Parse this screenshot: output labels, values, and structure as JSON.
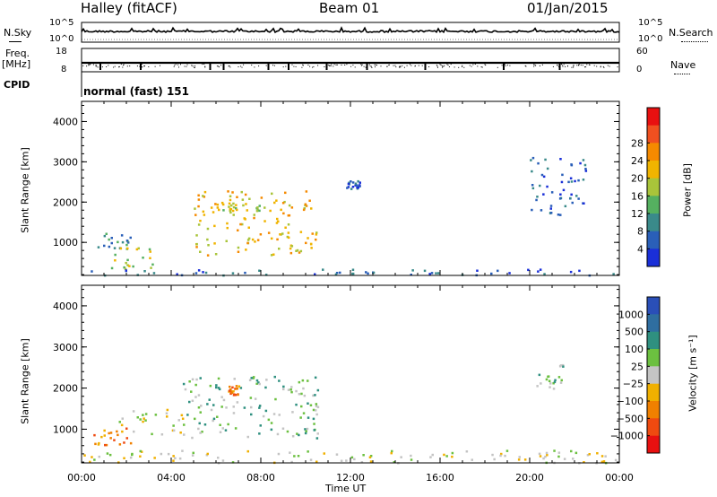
{
  "header": {
    "radar": "Halley (fitACF)",
    "beam": "Beam 01",
    "date": "01/Jan/2015"
  },
  "status": {
    "nsky_label": "N.Sky",
    "nsky_ticks": [
      "10^5",
      "10^0"
    ],
    "nsearch_label": "N.Search",
    "nsearch_ticks": [
      "10^5",
      "10^0"
    ],
    "freq_label": "Freq.",
    "freq_unit": "[MHz]",
    "freq_ticks": [
      "18",
      "8"
    ],
    "nave_label": "Nave",
    "nave_ticks": [
      "60",
      "0"
    ],
    "cpid_label": "CPID",
    "cpid_value": "normal (fast) 151"
  },
  "colors": {
    "power": [
      "#1a2fd8",
      "#2a5fb8",
      "#3a8a8a",
      "#55b060",
      "#a9c43a",
      "#f0b400",
      "#f58a00",
      "#f05020",
      "#e81010"
    ],
    "velocity": [
      "#2a4fb8",
      "#2f6ea0",
      "#2f9080",
      "#6cc040",
      "#c4c4c4",
      "#f0b000",
      "#f08000",
      "#ef4a10",
      "#e81010"
    ]
  },
  "chart_data": [
    {
      "type": "heatmap",
      "panel": "power",
      "ylabel": "Slant Range [km]",
      "xlabel": "Time UT",
      "x_ticks": [
        "00:00",
        "04:00",
        "08:00",
        "12:00",
        "16:00",
        "20:00",
        "00:00"
      ],
      "y_ticks": [
        "1000",
        "2000",
        "3000",
        "4000"
      ],
      "xlim_hours": [
        0,
        24
      ],
      "ylim_km": [
        180,
        4500
      ],
      "colorbar_label": "Power [dB]",
      "colorbar_ticks": [
        "4",
        "8",
        "12",
        "16",
        "20",
        "24",
        "28"
      ],
      "features": [
        {
          "t0": 0.6,
          "t1": 2.2,
          "r0": 850,
          "r1": 1250,
          "level": 2
        },
        {
          "t0": 1.2,
          "t1": 3.2,
          "r0": 350,
          "r1": 900,
          "level": 4
        },
        {
          "t0": 5.0,
          "t1": 10.5,
          "r0": 700,
          "r1": 2300,
          "level": 5
        },
        {
          "t0": 6.0,
          "t1": 8.0,
          "r0": 1800,
          "r1": 2000,
          "level": 4
        },
        {
          "t0": 11.8,
          "t1": 12.4,
          "r0": 2350,
          "r1": 2550,
          "level": 1
        },
        {
          "t0": 20.0,
          "t1": 22.5,
          "r0": 1700,
          "r1": 3200,
          "level": 1
        },
        {
          "t0": 0.0,
          "t1": 24.0,
          "r0": 200,
          "r1": 350,
          "level": 1
        }
      ]
    },
    {
      "type": "heatmap",
      "panel": "velocity",
      "ylabel": "Slant Range [km]",
      "xlabel": "Time UT",
      "x_ticks": [
        "00:00",
        "04:00",
        "08:00",
        "12:00",
        "16:00",
        "20:00",
        "00:00"
      ],
      "y_ticks": [
        "1000",
        "2000",
        "3000",
        "4000"
      ],
      "xlim_hours": [
        0,
        24
      ],
      "ylim_km": [
        180,
        4500
      ],
      "colorbar_label": "Velocity [m s⁻¹]",
      "colorbar_ticks": [
        "1000",
        "500",
        "100",
        "25",
        "−25",
        "−100",
        "−500",
        "−1000"
      ],
      "features": [
        {
          "t0": 0.5,
          "t1": 2.4,
          "r0": 600,
          "r1": 1050,
          "level": 6
        },
        {
          "t0": 1.5,
          "t1": 4.5,
          "r0": 900,
          "r1": 1500,
          "level": 4
        },
        {
          "t0": 4.5,
          "t1": 10.6,
          "r0": 800,
          "r1": 2300,
          "level": 3
        },
        {
          "t0": 6.3,
          "t1": 7.0,
          "r0": 1850,
          "r1": 2100,
          "level": 6
        },
        {
          "t0": 20.2,
          "t1": 21.5,
          "r0": 2000,
          "r1": 2600,
          "level": 3
        },
        {
          "t0": 0.0,
          "t1": 24.0,
          "r0": 200,
          "r1": 500,
          "level": 4
        }
      ]
    }
  ]
}
